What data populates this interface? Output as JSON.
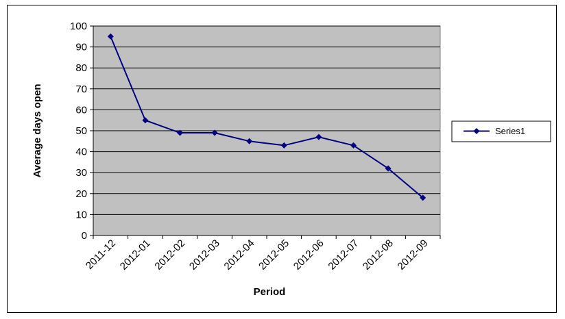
{
  "chart_data": {
    "type": "line",
    "title": "",
    "xlabel": "Period",
    "ylabel": "Average days open",
    "categories": [
      "2011-12",
      "2012-01",
      "2012-02",
      "2012-03",
      "2012-04",
      "2012-05",
      "2012-06",
      "2012-07",
      "2012-08",
      "2012-09"
    ],
    "series": [
      {
        "name": "Series1",
        "values": [
          95,
          55,
          49,
          49,
          45,
          43,
          47,
          43,
          32,
          18
        ],
        "color": "#000080"
      }
    ],
    "ylim": [
      0,
      100
    ],
    "yticks": [
      0,
      10,
      20,
      30,
      40,
      50,
      60,
      70,
      80,
      90,
      100
    ],
    "grid": true,
    "plot_background": "#c0c0c0",
    "legend_position": "right"
  }
}
